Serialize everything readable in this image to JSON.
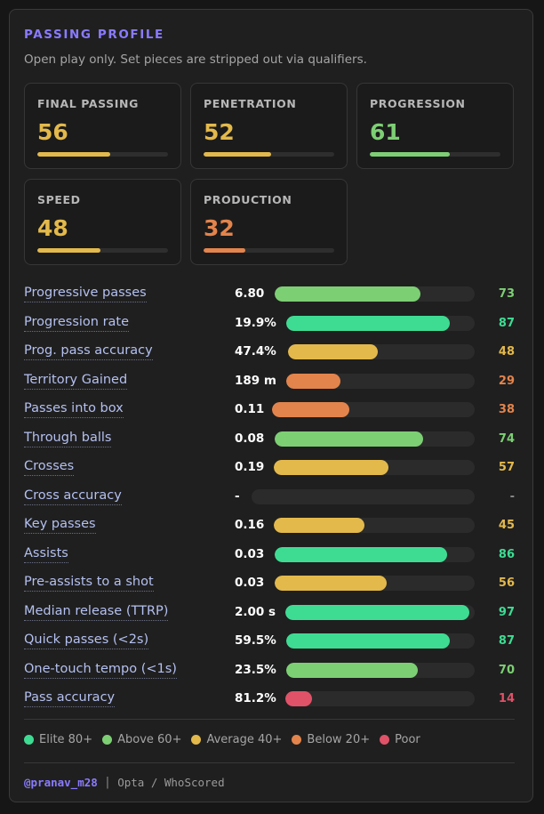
{
  "header": {
    "title": "PASSING PROFILE",
    "subtitle": "Open play only. Set pieces are stripped out via qualifiers."
  },
  "colors": {
    "elite": "#3edc93",
    "above": "#7dcf74",
    "average": "#e3b94b",
    "below": "#e3844c",
    "poor": "#e05268",
    "accent": "#8a7bff"
  },
  "cards": [
    {
      "label": "FINAL PASSING",
      "value": "56",
      "level": 0.56,
      "color": "#e3b94b"
    },
    {
      "label": "PENETRATION",
      "value": "52",
      "level": 0.52,
      "color": "#e3b94b"
    },
    {
      "label": "PROGRESSION",
      "value": "61",
      "level": 0.61,
      "color": "#7dcf74"
    },
    {
      "label": "SPEED",
      "value": "48",
      "level": 0.48,
      "color": "#e3b94b"
    },
    {
      "label": "PRODUCTION",
      "value": "32",
      "level": 0.32,
      "color": "#e3844c"
    }
  ],
  "metrics": [
    {
      "label": "Progressive passes",
      "value": "6.80",
      "pct": "73",
      "level": 0.73,
      "color": "#7dcf74"
    },
    {
      "label": "Progression rate",
      "value": "19.9%",
      "pct": "87",
      "level": 0.87,
      "color": "#3edc93"
    },
    {
      "label": "Prog. pass accuracy",
      "value": "47.4%",
      "pct": "48",
      "level": 0.48,
      "color": "#e3b94b"
    },
    {
      "label": "Territory Gained",
      "value": "189 m",
      "pct": "29",
      "level": 0.29,
      "color": "#e3844c"
    },
    {
      "label": "Passes into box",
      "value": "0.11",
      "pct": "38",
      "level": 0.38,
      "color": "#e3844c"
    },
    {
      "label": "Through balls",
      "value": "0.08",
      "pct": "74",
      "level": 0.74,
      "color": "#7dcf74"
    },
    {
      "label": "Crosses",
      "value": "0.19",
      "pct": "57",
      "level": 0.57,
      "color": "#e3b94b"
    },
    {
      "label": "Cross accuracy",
      "value": "-",
      "pct": "-",
      "level": 0,
      "color": "#8a8a8a"
    },
    {
      "label": "Key passes",
      "value": "0.16",
      "pct": "45",
      "level": 0.45,
      "color": "#e3b94b"
    },
    {
      "label": "Assists",
      "value": "0.03",
      "pct": "86",
      "level": 0.86,
      "color": "#3edc93"
    },
    {
      "label": "Pre-assists to a shot",
      "value": "0.03",
      "pct": "56",
      "level": 0.56,
      "color": "#e3b94b"
    },
    {
      "label": "Median release (TTRP)",
      "value": "2.00 s",
      "pct": "97",
      "level": 0.97,
      "color": "#3edc93"
    },
    {
      "label": "Quick passes (<2s)",
      "value": "59.5%",
      "pct": "87",
      "level": 0.87,
      "color": "#3edc93"
    },
    {
      "label": "One-touch tempo (<1s)",
      "value": "23.5%",
      "pct": "70",
      "level": 0.7,
      "color": "#7dcf74"
    },
    {
      "label": "Pass accuracy",
      "value": "81.2%",
      "pct": "14",
      "level": 0.14,
      "color": "#e05268"
    }
  ],
  "legend": [
    {
      "label": "Elite 80+",
      "color": "#3edc93"
    },
    {
      "label": "Above 60+",
      "color": "#7dcf74"
    },
    {
      "label": "Average 40+",
      "color": "#e3b94b"
    },
    {
      "label": "Below 20+",
      "color": "#e3844c"
    },
    {
      "label": "Poor",
      "color": "#e05268"
    }
  ],
  "footer": {
    "handle": "@pranav_m28",
    "separator": "|",
    "source": "Opta / WhoScored"
  }
}
